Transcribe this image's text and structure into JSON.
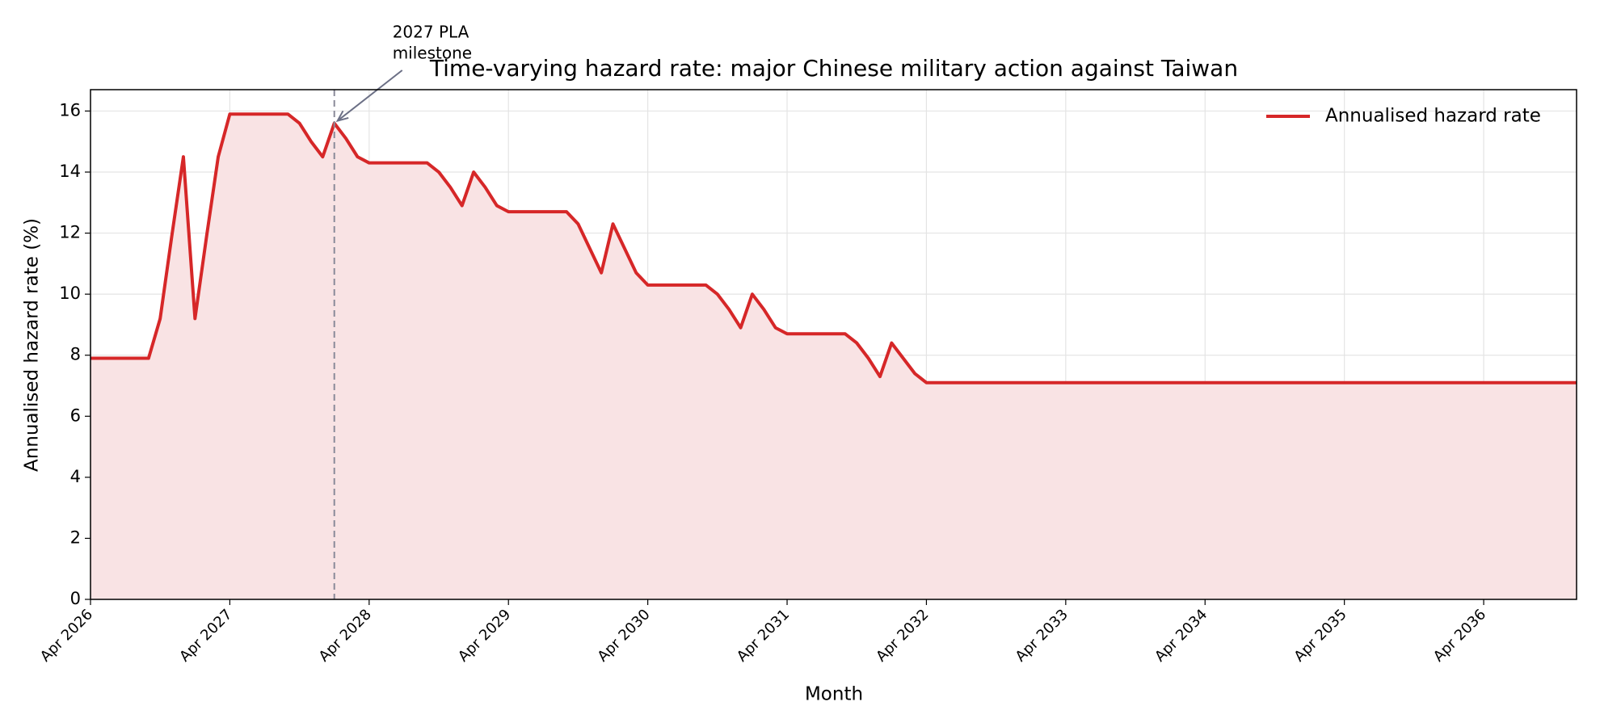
{
  "chart_data": {
    "type": "line",
    "title": "Time-varying hazard rate: major Chinese military action against Taiwan",
    "x_label": "Month",
    "y_label": "Annualised hazard rate (%)",
    "x": [
      "2026-04",
      "2026-05",
      "2026-06",
      "2026-07",
      "2026-08",
      "2026-09",
      "2026-10",
      "2026-11",
      "2026-12",
      "2027-01",
      "2027-02",
      "2027-03",
      "2027-04",
      "2027-05",
      "2027-06",
      "2027-07",
      "2027-08",
      "2027-09",
      "2027-10",
      "2027-11",
      "2027-12",
      "2028-01",
      "2028-02",
      "2028-03",
      "2028-04",
      "2028-05",
      "2028-06",
      "2028-07",
      "2028-08",
      "2028-09",
      "2028-10",
      "2028-11",
      "2028-12",
      "2029-01",
      "2029-02",
      "2029-03",
      "2029-04",
      "2029-05",
      "2029-06",
      "2029-07",
      "2029-08",
      "2029-09",
      "2029-10",
      "2029-11",
      "2029-12",
      "2030-01",
      "2030-02",
      "2030-03",
      "2030-04",
      "2030-05",
      "2030-06",
      "2030-07",
      "2030-08",
      "2030-09",
      "2030-10",
      "2030-11",
      "2030-12",
      "2031-01",
      "2031-02",
      "2031-03",
      "2031-04",
      "2031-05",
      "2031-06",
      "2031-07",
      "2031-08",
      "2031-09",
      "2031-10",
      "2031-11",
      "2031-12",
      "2032-01",
      "2032-02",
      "2032-03",
      "2032-04",
      "2032-05",
      "2032-06",
      "2032-07",
      "2032-08",
      "2032-09",
      "2032-10",
      "2032-11",
      "2032-12",
      "2033-01",
      "2033-02",
      "2033-03",
      "2033-04",
      "2033-05",
      "2033-06",
      "2033-07",
      "2033-08",
      "2033-09",
      "2033-10",
      "2033-11",
      "2033-12",
      "2034-01",
      "2034-02",
      "2034-03",
      "2034-04",
      "2034-05",
      "2034-06",
      "2034-07",
      "2034-08",
      "2034-09",
      "2034-10",
      "2034-11",
      "2034-12",
      "2035-01",
      "2035-02",
      "2035-03",
      "2035-04",
      "2035-05",
      "2035-06",
      "2035-07",
      "2035-08",
      "2035-09",
      "2035-10",
      "2035-11",
      "2035-12",
      "2036-01",
      "2036-02",
      "2036-03",
      "2036-04",
      "2036-05",
      "2036-06",
      "2036-07",
      "2036-08",
      "2036-09",
      "2036-10",
      "2036-11",
      "2036-12"
    ],
    "series": [
      {
        "name": "Annualised hazard rate",
        "color": "#d62728",
        "fill": "#f9e3e4",
        "values": [
          7.9,
          7.9,
          7.9,
          7.9,
          7.9,
          7.9,
          9.2,
          11.9,
          14.5,
          9.2,
          11.9,
          14.5,
          15.9,
          15.9,
          15.9,
          15.9,
          15.9,
          15.9,
          15.6,
          15.0,
          14.5,
          15.6,
          15.1,
          14.5,
          14.3,
          14.3,
          14.3,
          14.3,
          14.3,
          14.3,
          14.0,
          13.5,
          12.9,
          14.0,
          13.5,
          12.9,
          12.7,
          12.7,
          12.7,
          12.7,
          12.7,
          12.7,
          12.3,
          11.5,
          10.7,
          12.3,
          11.5,
          10.7,
          10.3,
          10.3,
          10.3,
          10.3,
          10.3,
          10.3,
          10.0,
          9.5,
          8.9,
          10.0,
          9.5,
          8.9,
          8.7,
          8.7,
          8.7,
          8.7,
          8.7,
          8.7,
          8.4,
          7.9,
          7.3,
          8.4,
          7.9,
          7.4,
          7.1,
          7.1,
          7.1,
          7.1,
          7.1,
          7.1,
          7.1,
          7.1,
          7.1,
          7.1,
          7.1,
          7.1,
          7.1,
          7.1,
          7.1,
          7.1,
          7.1,
          7.1,
          7.1,
          7.1,
          7.1,
          7.1,
          7.1,
          7.1,
          7.1,
          7.1,
          7.1,
          7.1,
          7.1,
          7.1,
          7.1,
          7.1,
          7.1,
          7.1,
          7.1,
          7.1,
          7.1,
          7.1,
          7.1,
          7.1,
          7.1,
          7.1,
          7.1,
          7.1,
          7.1,
          7.1,
          7.1,
          7.1,
          7.1,
          7.1,
          7.1,
          7.1,
          7.1,
          7.1,
          7.1,
          7.1,
          7.1
        ]
      }
    ],
    "xticks": [
      {
        "value": "2026-04",
        "label": "Apr 2026"
      },
      {
        "value": "2027-04",
        "label": "Apr 2027"
      },
      {
        "value": "2028-04",
        "label": "Apr 2028"
      },
      {
        "value": "2029-04",
        "label": "Apr 2029"
      },
      {
        "value": "2030-04",
        "label": "Apr 2030"
      },
      {
        "value": "2031-04",
        "label": "Apr 2031"
      },
      {
        "value": "2032-04",
        "label": "Apr 2032"
      },
      {
        "value": "2033-04",
        "label": "Apr 2033"
      },
      {
        "value": "2034-04",
        "label": "Apr 2034"
      },
      {
        "value": "2035-04",
        "label": "Apr 2035"
      },
      {
        "value": "2036-04",
        "label": "Apr 2036"
      }
    ],
    "ylim": [
      0,
      16.7
    ],
    "yticks": [
      0,
      2,
      4,
      6,
      8,
      10,
      12,
      14,
      16
    ],
    "grid": true,
    "legend": "upper right",
    "annotation": {
      "lines": [
        "2027 PLA",
        "milestone"
      ],
      "x": "2028-01",
      "y": 15.6,
      "color": "#6b6f85"
    }
  }
}
